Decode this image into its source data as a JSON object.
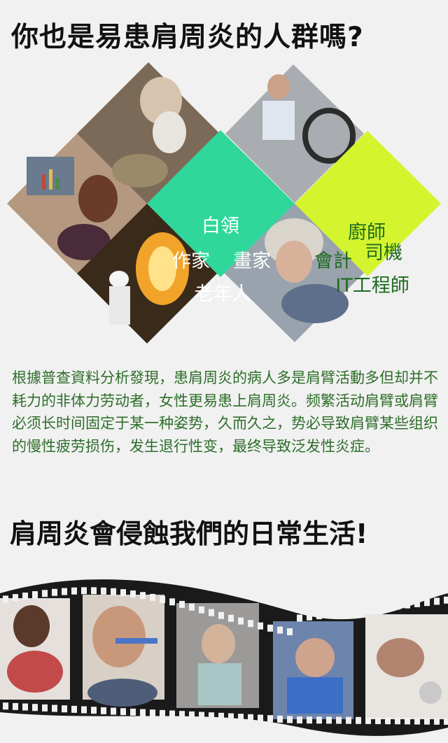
{
  "header": {
    "title": "你也是易患肩周炎的人群嗎?"
  },
  "mosaic": {
    "group1": {
      "line1": "白領",
      "line2a": "作家",
      "line2b": "畫家",
      "line3": "老年人"
    },
    "group2": {
      "line1": "廚師",
      "line2a": "會計",
      "line2b": "司機",
      "line3": "IT工程師"
    },
    "colors": {
      "group1": "#2fd79b",
      "group2": "#d4f52e"
    }
  },
  "body_text": "根據普查資料分析發現，患肩周炎的病人多是肩臂活動多但却并不耗力的非体力劳动者，女性更易患上肩周炎。频繁活动肩臂或肩臂必须长时间固定于某一种姿势，久而久之，势必导致肩臂某些组织的慢性疲劳损伤，发生退行性变，最终导致泛发性炎症。",
  "section2": {
    "title": "肩周炎會侵蝕我們的日常生活!"
  }
}
